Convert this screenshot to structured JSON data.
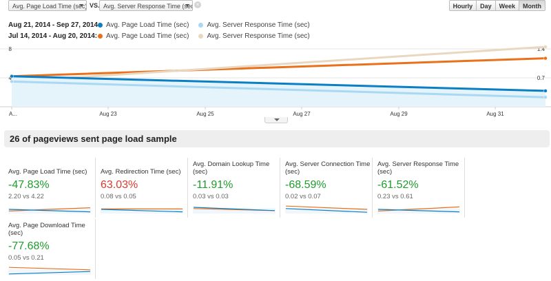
{
  "header": {
    "primary_metric": "Avg. Page Load Time (sec)",
    "vs_label": "VS.",
    "secondary_metric": "Avg. Server Response Time (sec)",
    "clear_symbol": "×",
    "intervals": [
      {
        "label": "Hourly",
        "active": false
      },
      {
        "label": "Day",
        "active": false
      },
      {
        "label": "Week",
        "active": false
      },
      {
        "label": "Month",
        "active": true
      }
    ]
  },
  "legend": [
    {
      "range": "Aug 21, 2014 - Sep 27, 2014:",
      "items": [
        {
          "label": "Avg. Page Load Time (sec)",
          "color": "#0b7fc4"
        },
        {
          "label": "Avg. Server Response Time (sec)",
          "color": "#a9d8f3"
        }
      ]
    },
    {
      "range": "Jul 14, 2014 - Aug 20, 2014:",
      "items": [
        {
          "label": "Avg. Page Load Time (sec)",
          "color": "#e9711c"
        },
        {
          "label": "Avg. Server Response Time (sec)",
          "color": "#ead7c0"
        }
      ]
    }
  ],
  "chart_data": {
    "type": "line",
    "left_axis_labels": [
      "8",
      "4"
    ],
    "right_axis_labels": [
      "1.4",
      "0.7"
    ],
    "x_tick_labels": [
      "A...",
      "Aug 23",
      "Aug 25",
      "Aug 27",
      "Aug 29",
      "Aug 31"
    ],
    "left_ylim": [
      0,
      8
    ],
    "right_ylim": [
      0,
      1.4
    ],
    "series": [
      {
        "name": "Avg. Page Load Time (sec)",
        "period": "Jul 14, 2014 - Aug 20, 2014",
        "axis": "left",
        "color": "#e9711c",
        "values": [
          4.22,
          6.7
        ]
      },
      {
        "name": "Avg. Server Response Time (sec)",
        "period": "Jul 14, 2014 - Aug 20, 2014",
        "axis": "right",
        "color": "#ead7c0",
        "values": [
          0.61,
          1.45
        ]
      },
      {
        "name": "Avg. Page Load Time (sec)",
        "period": "Aug 21, 2014 - Sep 27, 2014",
        "axis": "left",
        "color": "#0b7fc4",
        "values": [
          4.22,
          2.2
        ]
      },
      {
        "name": "Avg. Server Response Time (sec)",
        "period": "Aug 21, 2014 - Sep 27, 2014",
        "axis": "right",
        "color": "#a9d8f3",
        "values": [
          0.61,
          0.23
        ]
      }
    ]
  },
  "section_title": "26 of pageviews sent page load sample",
  "tiles": [
    {
      "title": "Avg. Page Load Time (sec)",
      "change": "-47.83%",
      "trend": "good",
      "compare": "2.20 vs 4.22",
      "spark": {
        "current": [
          0.5,
          0.2
        ],
        "previous": [
          0.3,
          0.7
        ]
      }
    },
    {
      "title": "Avg. Redirection Time (sec)",
      "change": "63.03%",
      "trend": "bad",
      "compare": "0.08 vs 0.05",
      "spark": {
        "current": [
          0.5,
          0.2
        ],
        "previous": [
          0.55,
          0.55
        ]
      }
    },
    {
      "title": "Avg. Domain Lookup Time (sec)",
      "change": "-11.91%",
      "trend": "good",
      "compare": "0.03 vs 0.03",
      "spark": {
        "current": [
          0.75,
          0.35
        ],
        "previous": [
          0.6,
          0.35
        ]
      }
    },
    {
      "title": "Avg. Server Connection Time (sec)",
      "change": "-68.59%",
      "trend": "good",
      "compare": "0.02 vs 0.07",
      "spark": {
        "current": [
          0.6,
          0.15
        ],
        "previous": [
          0.9,
          0.5
        ]
      }
    },
    {
      "title": "Avg. Server Response Time (sec)",
      "change": "-61.52%",
      "trend": "good",
      "compare": "0.23 vs 0.61",
      "spark": {
        "current": [
          0.5,
          0.2
        ],
        "previous": [
          0.3,
          0.8
        ]
      }
    },
    {
      "title": "Avg. Page Download Time (sec)",
      "change": "-77.68%",
      "trend": "good",
      "compare": "0.05 vs 0.21",
      "spark": {
        "current": [
          0.1,
          0.4
        ],
        "previous": [
          0.9,
          0.6
        ]
      }
    }
  ]
}
